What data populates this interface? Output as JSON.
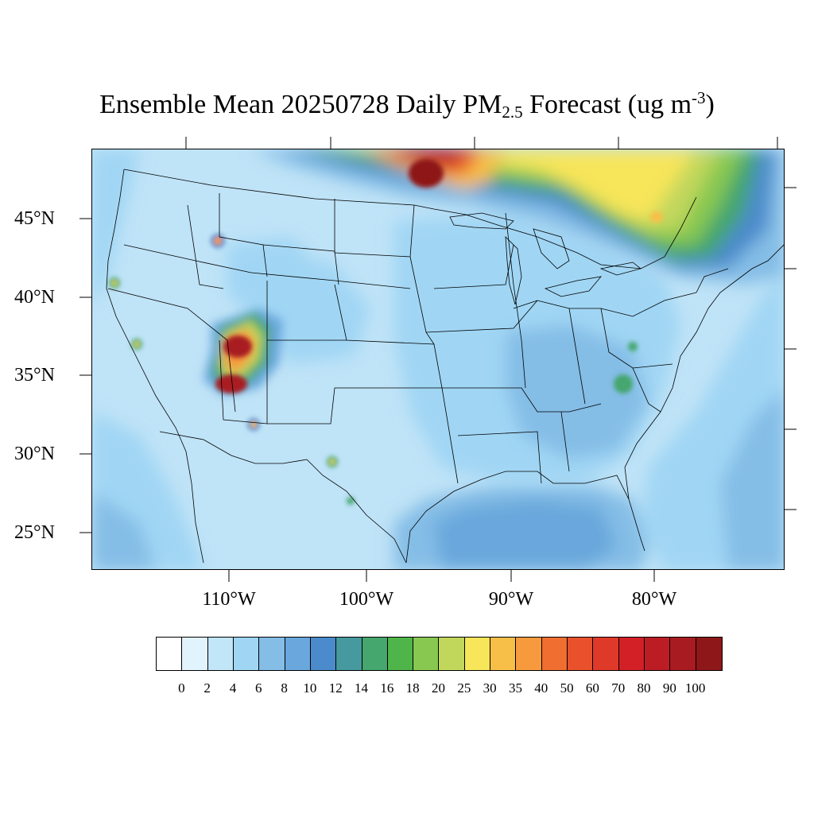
{
  "title": {
    "prefix": "Ensemble Mean 20250728 Daily PM",
    "subscript": "2.5",
    "middle": " Forecast (ug m",
    "superscript": "-3",
    "suffix": ")"
  },
  "latitude_labels": [
    "45°N",
    "40°N",
    "35°N",
    "30°N",
    "25°N"
  ],
  "longitude_labels": [
    "110°W",
    "100°W",
    "90°W",
    "80°W"
  ],
  "colorbar": {
    "labels": [
      "0",
      "2",
      "4",
      "6",
      "8",
      "10",
      "12",
      "14",
      "16",
      "18",
      "20",
      "25",
      "30",
      "35",
      "40",
      "50",
      "60",
      "70",
      "80",
      "90",
      "100"
    ],
    "colors": [
      "#ffffff",
      "#e1f3fc",
      "#c1e6f8",
      "#a0d6f4",
      "#84bde6",
      "#69a7dc",
      "#4b8bcb",
      "#46999e",
      "#45a66e",
      "#4fb54a",
      "#88c851",
      "#c1d75b",
      "#f7e55a",
      "#f8bf48",
      "#f69a3d",
      "#f06e2f",
      "#e9502c",
      "#df392a",
      "#d32027",
      "#bc1d24",
      "#a81b20",
      "#8e1819"
    ]
  },
  "map_style": {
    "ocean_color": "#84bde6",
    "land_base_color": "#bfe3f7",
    "boundary_color": "#000000"
  }
}
